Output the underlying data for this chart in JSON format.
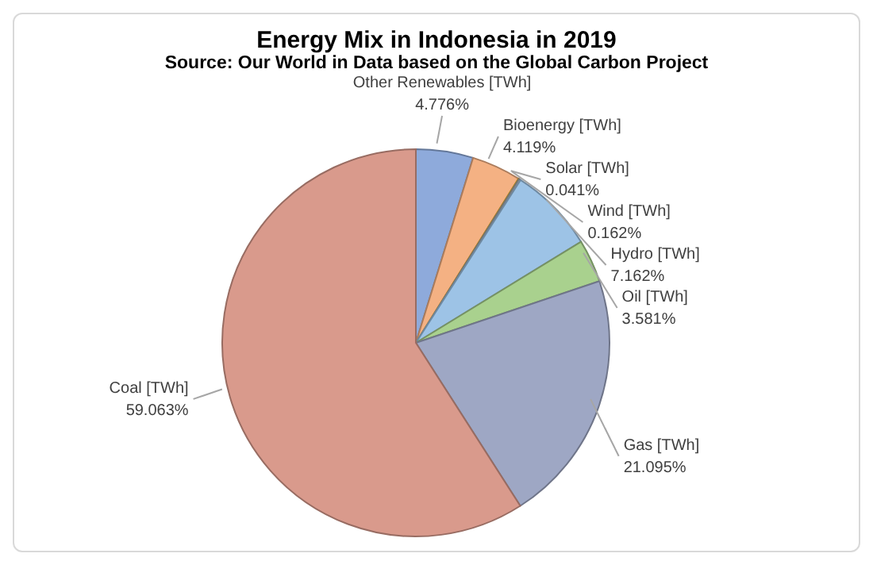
{
  "chart_data": {
    "type": "pie",
    "title": "Energy Mix in Indonesia in 2019",
    "subtitle": "Source: Our World in Data based on the Global Carbon Project",
    "categories": [
      "Other Renewables [TWh]",
      "Bioenergy [TWh]",
      "Solar [TWh]",
      "Wind [TWh]",
      "Hydro [TWh]",
      "Oil [TWh]",
      "Gas [TWh]",
      "Coal [TWh]"
    ],
    "values": [
      4.776,
      4.119,
      0.041,
      0.162,
      7.162,
      3.581,
      21.095,
      59.063
    ],
    "value_labels": [
      "4.776%",
      "4.119%",
      "0.041%",
      "0.162%",
      "7.162%",
      "3.581%",
      "21.095%",
      "59.063%"
    ],
    "colors": [
      "#8eaadb",
      "#f4b183",
      "#ffc000",
      "#a5a5a5",
      "#9dc3e6",
      "#a9d18e",
      "#9ea7c4",
      "#d99a8c"
    ],
    "legend": false
  }
}
